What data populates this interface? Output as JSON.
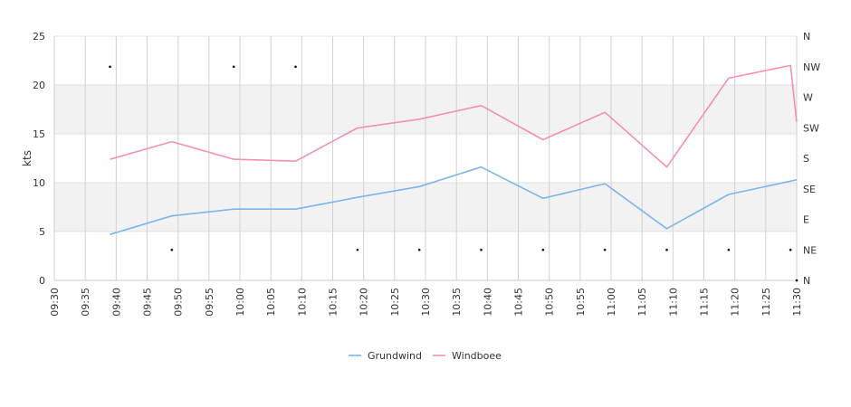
{
  "chart_data": {
    "type": "line",
    "title": "",
    "xlabel": "",
    "ylabel": "kts",
    "ylim": [
      0,
      25
    ],
    "x_ticks": [
      "09:30",
      "09:35",
      "09:40",
      "09:45",
      "09:50",
      "09:55",
      "10:00",
      "10:05",
      "10:10",
      "10:15",
      "10:20",
      "10:25",
      "10:30",
      "10:35",
      "10:40",
      "10:45",
      "10:50",
      "10:55",
      "11:00",
      "11:05",
      "11:10",
      "11:15",
      "11:20",
      "11:25",
      "11:30"
    ],
    "y_ticks": [
      0,
      5,
      10,
      15,
      20,
      25
    ],
    "y2_ticks": [
      "N",
      "NE",
      "E",
      "SE",
      "S",
      "SW",
      "W",
      "NW",
      "N"
    ],
    "grid": true,
    "legend_position": "bottom",
    "series": [
      {
        "name": "Grundwind",
        "color": "#7cb5ec",
        "points": [
          {
            "x": "09:39",
            "y": 4.7
          },
          {
            "x": "09:49",
            "y": 6.6
          },
          {
            "x": "09:59",
            "y": 7.3
          },
          {
            "x": "10:09",
            "y": 7.3
          },
          {
            "x": "10:19",
            "y": 8.5
          },
          {
            "x": "10:29",
            "y": 9.6
          },
          {
            "x": "10:39",
            "y": 11.6
          },
          {
            "x": "10:49",
            "y": 8.4
          },
          {
            "x": "10:59",
            "y": 9.9
          },
          {
            "x": "11:09",
            "y": 5.3
          },
          {
            "x": "11:19",
            "y": 8.8
          },
          {
            "x": "11:30",
            "y": 10.3
          }
        ]
      },
      {
        "name": "Windboee",
        "color": "#f48fb1",
        "points": [
          {
            "x": "09:39",
            "y": 12.4
          },
          {
            "x": "09:49",
            "y": 14.2
          },
          {
            "x": "09:59",
            "y": 12.4
          },
          {
            "x": "10:09",
            "y": 12.2
          },
          {
            "x": "10:19",
            "y": 15.6
          },
          {
            "x": "10:29",
            "y": 16.5
          },
          {
            "x": "10:39",
            "y": 17.9
          },
          {
            "x": "10:49",
            "y": 14.4
          },
          {
            "x": "10:59",
            "y": 17.2
          },
          {
            "x": "11:09",
            "y": 11.6
          },
          {
            "x": "11:19",
            "y": 20.7
          },
          {
            "x": "11:29",
            "y": 22.0
          },
          {
            "x": "11:30",
            "y": 16.2
          }
        ]
      },
      {
        "name": "",
        "color": "#000000",
        "points": [
          {
            "x": "09:39",
            "y": "NW"
          },
          {
            "x": "09:49",
            "y": "NE"
          },
          {
            "x": "09:59",
            "y": "NW"
          },
          {
            "x": "10:09",
            "y": "NW"
          },
          {
            "x": "10:19",
            "y": "NE"
          },
          {
            "x": "10:29",
            "y": "NE"
          },
          {
            "x": "10:39",
            "y": "NE"
          },
          {
            "x": "10:49",
            "y": "NE"
          },
          {
            "x": "10:59",
            "y": "NE"
          },
          {
            "x": "11:09",
            "y": "NE"
          },
          {
            "x": "11:19",
            "y": "NE"
          },
          {
            "x": "11:29",
            "y": "NE"
          },
          {
            "x": "11:30",
            "y": "N"
          }
        ]
      }
    ]
  }
}
